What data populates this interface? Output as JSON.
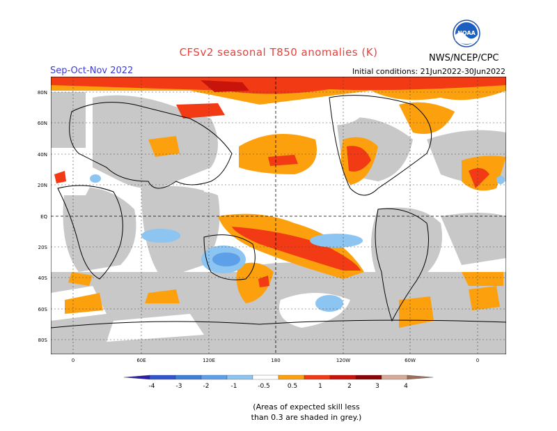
{
  "header": {
    "title": "CFSv2 seasonal T850 anomalies (K)",
    "season": "Sep-Oct-Nov 2022",
    "initial_conditions": "Initial conditions: 21Jun2022-30Jun2022",
    "agency": "NWS/NCEP/CPC",
    "logo_text": "NOAA"
  },
  "map": {
    "lat_labels": [
      "80N",
      "60N",
      "40N",
      "20N",
      "EQ",
      "20S",
      "40S",
      "60S",
      "80S"
    ],
    "lon_labels": [
      "0",
      "60E",
      "120E",
      "180",
      "120W",
      "60W",
      "0"
    ],
    "grey_color": "#c8c8c8"
  },
  "colorbar": {
    "labels": [
      "-4",
      "-3",
      "-2",
      "-1",
      "-0.5",
      "0.5",
      "1",
      "2",
      "3",
      "4"
    ],
    "colors": [
      "#2a1fa8",
      "#3355cc",
      "#3e7fd8",
      "#5ea0e8",
      "#8cc4f2",
      "#ffffff",
      "#fca10d",
      "#f23a14",
      "#c8140a",
      "#8a0505",
      "#d7aa98",
      "#9c6e5a"
    ]
  },
  "footnote": {
    "line1": "(Areas of expected skill less",
    "line2": "than 0.3 are shaded in grey.)"
  }
}
